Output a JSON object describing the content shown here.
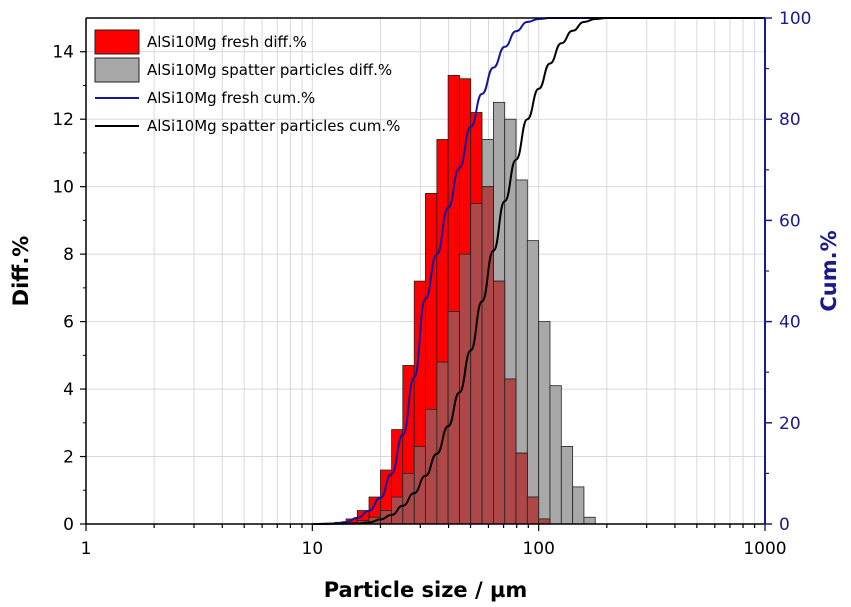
{
  "colors": {
    "fresh_bar": "#ff0000",
    "spatter_bar": "#a8a8a8",
    "fresh_cum": "#1414a0",
    "spatter_cum": "#000000",
    "right_axis": "#1a1a8c",
    "grid": "#d9d9d9"
  },
  "chart_data": {
    "type": "bar",
    "xlabel": "Particle size / µm",
    "ylabel_left": "Diff.%",
    "ylabel_right": "Cum.%",
    "xscale": "log",
    "xlim": [
      1,
      1000
    ],
    "ylim_left": [
      0,
      15
    ],
    "ylim_right": [
      0,
      100
    ],
    "x_ticks": [
      "1",
      "10",
      "100",
      "1000"
    ],
    "y_ticks_left": [
      "0",
      "2",
      "4",
      "6",
      "8",
      "10",
      "12",
      "14"
    ],
    "y_ticks_right": [
      "0",
      "20",
      "40",
      "60",
      "80",
      "100"
    ],
    "grid": true,
    "legend_position": "top-left",
    "bin_edges": [
      12.6,
      14.1,
      15.8,
      17.8,
      20.0,
      22.4,
      25.1,
      28.2,
      31.6,
      35.5,
      39.8,
      44.7,
      50.1,
      56.2,
      63.1,
      70.8,
      79.4,
      89.1,
      100.0,
      112.2,
      125.9,
      141.3,
      158.5,
      177.8,
      199.5,
      223.9
    ],
    "series": [
      {
        "name": "AlSi10Mg fresh diff.%",
        "kind": "bar",
        "values": [
          0.05,
          0.15,
          0.4,
          0.8,
          1.6,
          2.8,
          4.7,
          7.2,
          9.8,
          11.4,
          13.3,
          13.2,
          12.2,
          10.0,
          7.2,
          4.3,
          2.1,
          0.8,
          0.15,
          0,
          0,
          0,
          0,
          0,
          0
        ]
      },
      {
        "name": "AlSi10Mg spatter particles diff.%",
        "kind": "bar",
        "values": [
          0,
          0,
          0.1,
          0.2,
          0.4,
          0.8,
          1.5,
          2.3,
          3.4,
          4.8,
          6.3,
          8.0,
          9.5,
          11.4,
          12.5,
          12.0,
          10.2,
          8.4,
          6.0,
          4.1,
          2.3,
          1.1,
          0.2,
          0,
          0
        ]
      },
      {
        "name": "AlSi10Mg fresh cum.%",
        "kind": "line",
        "x": [
          10,
          12.6,
          14.1,
          15.8,
          17.8,
          20.0,
          22.4,
          25.1,
          28.2,
          31.6,
          35.5,
          39.8,
          44.7,
          50.1,
          56.2,
          63.1,
          70.8,
          79.4,
          89.1,
          100.0,
          112.2,
          125.9,
          1000
        ],
        "y": [
          0,
          0.1,
          0.4,
          1.2,
          2.6,
          5.2,
          9.9,
          17.6,
          29.0,
          44.5,
          53.3,
          62.5,
          70.4,
          78.5,
          85.0,
          90.2,
          94.3,
          97.4,
          99.2,
          99.8,
          100,
          100,
          100
        ]
      },
      {
        "name": "AlSi10Mg spatter particles cum.%",
        "kind": "line",
        "x": [
          10,
          15.8,
          17.8,
          20.0,
          22.4,
          25.1,
          28.2,
          31.6,
          35.5,
          39.8,
          44.7,
          50.1,
          56.2,
          63.1,
          70.8,
          79.4,
          89.1,
          100.0,
          112.2,
          125.9,
          141.3,
          158.5,
          177.8,
          199.5,
          1000
        ],
        "y": [
          0,
          0.1,
          0.3,
          0.9,
          1.8,
          3.6,
          6.1,
          9.5,
          13.9,
          19.3,
          26.0,
          34.3,
          44.0,
          54.0,
          63.8,
          72.0,
          80.0,
          86.0,
          91.0,
          95.0,
          97.5,
          99.2,
          99.8,
          100,
          100
        ]
      }
    ]
  }
}
